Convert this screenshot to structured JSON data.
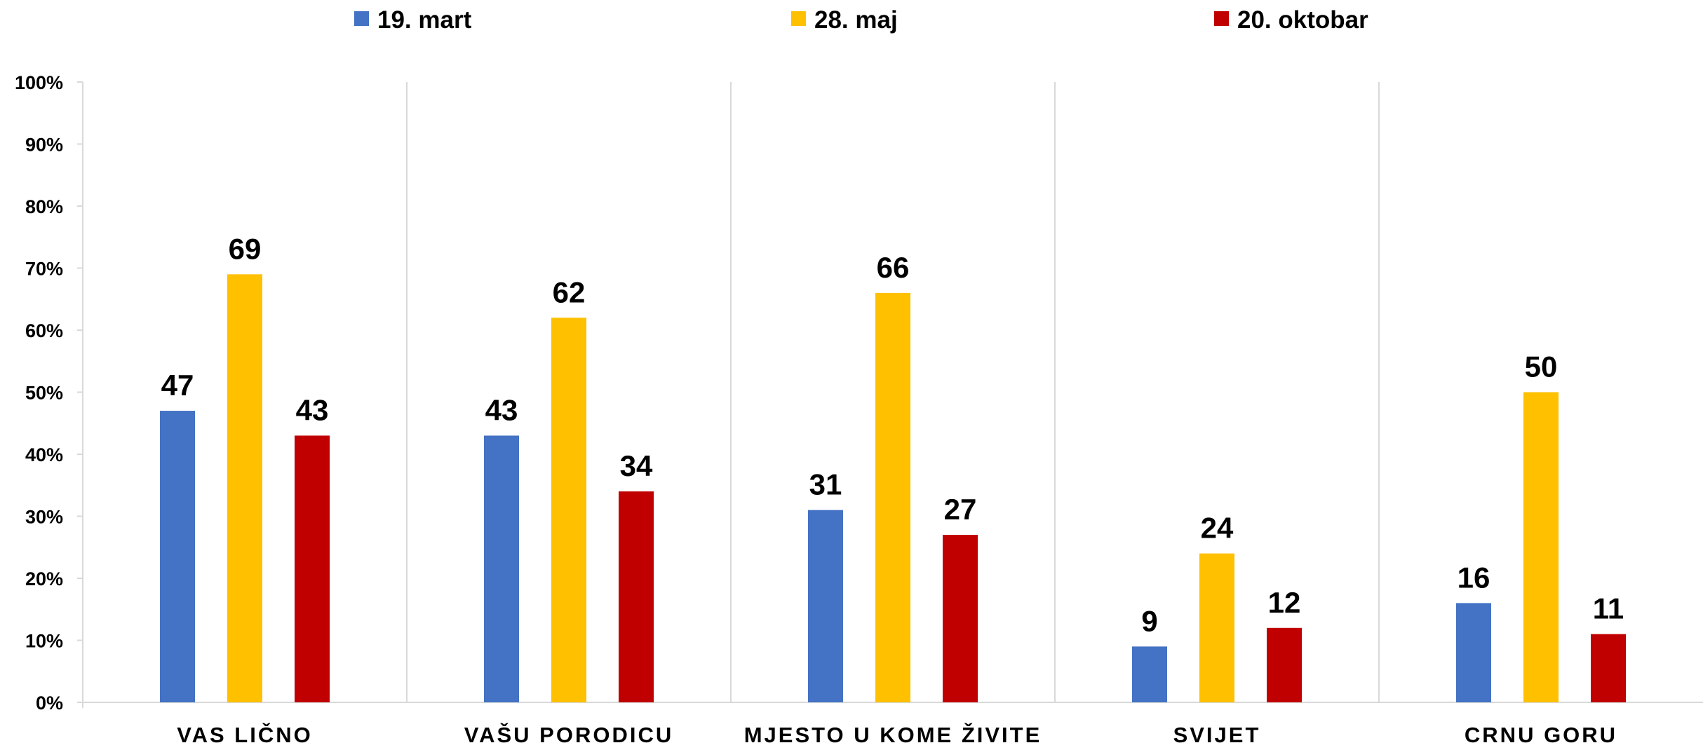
{
  "chart_data": {
    "type": "bar",
    "categories": [
      "VAS LIČNO",
      "VAŠU PORODICU",
      "MJESTO U KOME ŽIVITE",
      "SVIJET",
      "CRNU GORU"
    ],
    "series": [
      {
        "name": "19. mart",
        "values": [
          47,
          43,
          31,
          9,
          16
        ],
        "color": "#4472C4"
      },
      {
        "name": "28. maj",
        "values": [
          69,
          62,
          66,
          24,
          50
        ],
        "color": "#FFC000"
      },
      {
        "name": "20. oktobar",
        "values": [
          43,
          34,
          27,
          12,
          11
        ],
        "color": "#C00000"
      }
    ],
    "data_labels": true,
    "title": "",
    "xlabel": "",
    "ylabel": "",
    "ylim": [
      0,
      100
    ],
    "y_ticks": [
      "0%",
      "10%",
      "20%",
      "30%",
      "40%",
      "50%",
      "60%",
      "70%",
      "80%",
      "90%",
      "100%"
    ],
    "legend_position": "top",
    "category_separators": true
  }
}
